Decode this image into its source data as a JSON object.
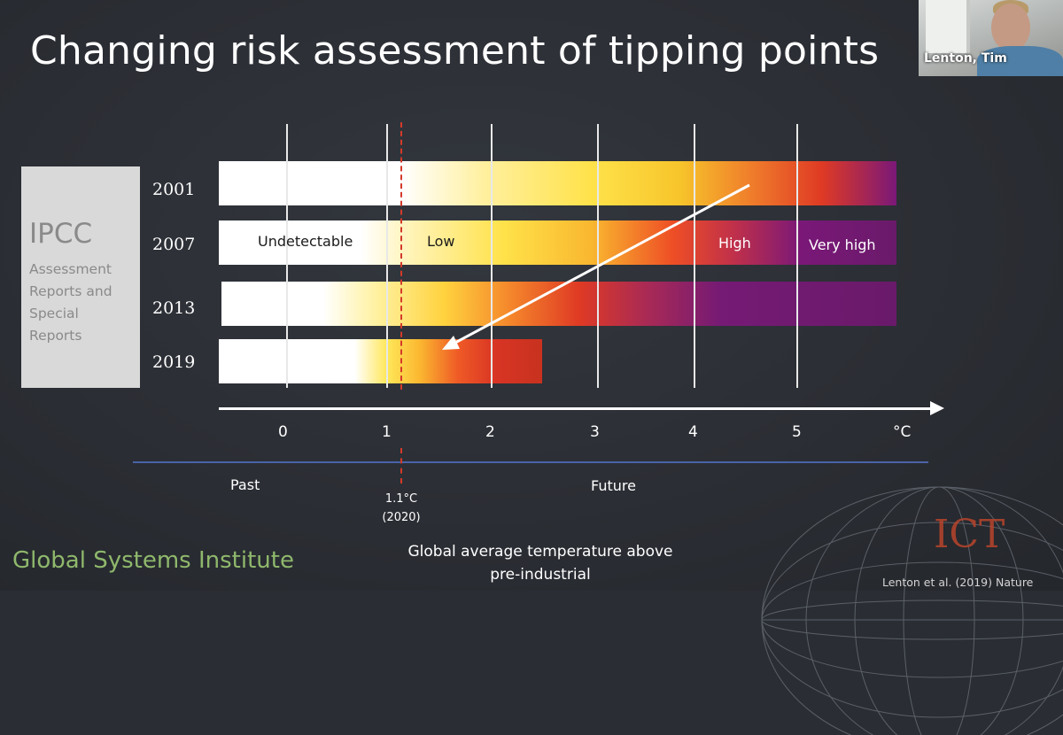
{
  "title": "Changing risk assessment of tipping points",
  "webcam": {
    "participant_name": "Lenton, Tim"
  },
  "ipcc_box": {
    "heading": "IPCC",
    "subtitle_lines": [
      "Assessment",
      "Reports and",
      "Special",
      "Reports"
    ]
  },
  "rows": [
    {
      "year": "2001"
    },
    {
      "year": "2007"
    },
    {
      "year": "2013"
    },
    {
      "year": "2019"
    }
  ],
  "risk_labels": {
    "undetectable": "Undetectable",
    "low": "Low",
    "high": "High",
    "very_high": "Very high"
  },
  "axis": {
    "ticks": [
      "0",
      "1",
      "2",
      "3",
      "4",
      "5",
      "°C"
    ]
  },
  "timeline": {
    "past": "Past",
    "future": "Future",
    "marker_value": "1.1°C",
    "marker_year": "(2020)"
  },
  "footer": {
    "institute": "Global Systems Institute",
    "axis_title_line1": "Global average temperature above",
    "axis_title_line2": "pre-industrial",
    "logo_text": "ICT",
    "citation": "Lenton et al. (2019) Nature"
  },
  "colors": {
    "background": "#2a2d33",
    "risk_low": "#ffe24a",
    "risk_high": "#df3a24",
    "risk_very_high": "#6a1a6a",
    "marker_red": "#d43a2a",
    "institute_green": "#8fb86c"
  }
}
